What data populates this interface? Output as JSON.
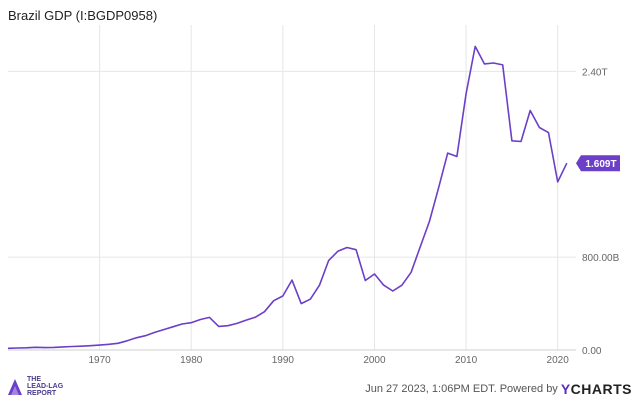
{
  "header": {
    "title": "Brazil GDP (I:BGDP0958)"
  },
  "footer": {
    "timestamp": "Jun 27 2023, 1:06PM EDT.",
    "powered_by": "Powered by",
    "brand_y": "Y",
    "brand_rest": "CHARTS",
    "logo_lines": [
      "THE",
      "LEAD-LAG",
      "REPORT"
    ]
  },
  "chart_data": {
    "type": "line",
    "title": "Brazil GDP (I:BGDP0958)",
    "xlabel": "",
    "ylabel": "",
    "x_ticks": [
      "1970",
      "1980",
      "1990",
      "2000",
      "2010",
      "2020"
    ],
    "y_ticks": [
      "0.00",
      "800.00B",
      "2.40T"
    ],
    "ylim_billions": [
      0,
      2800
    ],
    "xlim": [
      1960,
      2022
    ],
    "grid": true,
    "last_value_label": "1.609T",
    "line_color": "#6b3fc7",
    "series": [
      {
        "unit": "billions USD",
        "x": [
          1960,
          1961,
          1962,
          1963,
          1964,
          1965,
          1966,
          1967,
          1968,
          1969,
          1970,
          1971,
          1972,
          1973,
          1974,
          1975,
          1976,
          1977,
          1978,
          1979,
          1980,
          1981,
          1982,
          1983,
          1984,
          1985,
          1986,
          1987,
          1988,
          1989,
          1990,
          1991,
          1992,
          1993,
          1994,
          1995,
          1996,
          1997,
          1998,
          1999,
          2000,
          2001,
          2002,
          2003,
          2004,
          2005,
          2006,
          2007,
          2008,
          2009,
          2010,
          2011,
          2012,
          2013,
          2014,
          2015,
          2016,
          2017,
          2018,
          2019,
          2020,
          2021
        ],
        "values": [
          15,
          17,
          19,
          23,
          21,
          22,
          27,
          30,
          33,
          37,
          42,
          49,
          58,
          79,
          105,
          123,
          152,
          176,
          200,
          224,
          235,
          263,
          281,
          203,
          209,
          229,
          258,
          283,
          330,
          425,
          465,
          602,
          400,
          438,
          558,
          770,
          850,
          883,
          864,
          599,
          655,
          559,
          508,
          558,
          669,
          891,
          1107,
          1397,
          1696,
          1667,
          2209,
          2616,
          2465,
          2473,
          2456,
          1802,
          1796,
          2063,
          1917,
          1873,
          1448,
          1609
        ]
      }
    ]
  }
}
